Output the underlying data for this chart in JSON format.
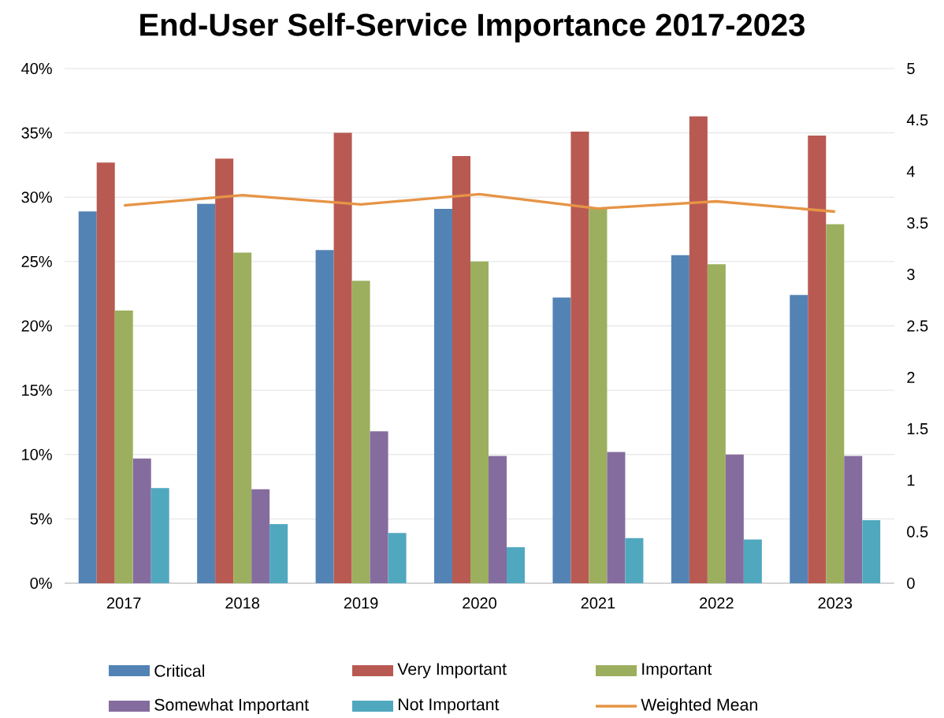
{
  "chart_data": {
    "type": "bar",
    "title": "End-User Self-Service Importance 2017-2023",
    "categories": [
      "2017",
      "2018",
      "2019",
      "2020",
      "2021",
      "2022",
      "2023"
    ],
    "series": [
      {
        "name": "Critical",
        "color": "#5383b5",
        "values": [
          28.9,
          29.5,
          25.9,
          29.1,
          22.2,
          25.5,
          22.4
        ]
      },
      {
        "name": "Very Important",
        "color": "#b85a52",
        "values": [
          32.7,
          33.0,
          35.0,
          33.2,
          35.1,
          36.3,
          34.8
        ]
      },
      {
        "name": "Important",
        "color": "#9caf5e",
        "values": [
          21.2,
          25.7,
          23.5,
          25.0,
          29.1,
          24.8,
          27.9
        ]
      },
      {
        "name": "Somewhat Important",
        "color": "#856c9f",
        "values": [
          9.7,
          7.3,
          11.8,
          9.9,
          10.2,
          10.0,
          9.9
        ]
      },
      {
        "name": "Not Important",
        "color": "#50a8bf",
        "values": [
          7.4,
          4.6,
          3.9,
          2.8,
          3.5,
          3.4,
          4.9
        ]
      },
      {
        "name": "Weighted Mean",
        "color": "#e69445",
        "type": "line",
        "axis": "y2",
        "values": [
          3.67,
          3.77,
          3.68,
          3.78,
          3.64,
          3.71,
          3.61
        ]
      }
    ],
    "ylim": [
      0,
      40
    ],
    "yticks": [
      {
        "value": 0,
        "label": "0%"
      },
      {
        "value": 5,
        "label": "5%"
      },
      {
        "value": 10,
        "label": "10%"
      },
      {
        "value": 15,
        "label": "15%"
      },
      {
        "value": 20,
        "label": "20%"
      },
      {
        "value": 25,
        "label": "25%"
      },
      {
        "value": 30,
        "label": "30%"
      },
      {
        "value": 35,
        "label": "35%"
      },
      {
        "value": 40,
        "label": "40%"
      }
    ],
    "y2lim": [
      0,
      5
    ],
    "y2ticks": [
      0,
      0.5,
      1,
      1.5,
      2,
      2.5,
      3,
      3.5,
      4,
      4.5,
      5
    ],
    "grid": "y",
    "legend": "bottom",
    "marker": "none",
    "line_style": "solid"
  }
}
